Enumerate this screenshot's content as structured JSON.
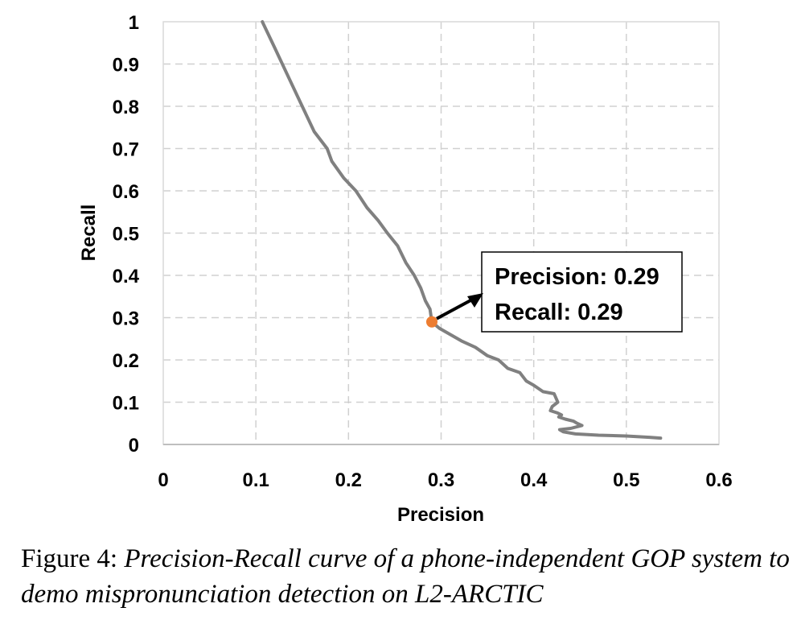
{
  "chart_data": {
    "type": "line",
    "xlabel": "Precision",
    "ylabel": "Recall",
    "xlim": [
      0,
      0.6
    ],
    "ylim": [
      0,
      1
    ],
    "x_ticks": [
      "0",
      "0.1",
      "0.2",
      "0.3",
      "0.4",
      "0.5",
      "0.6"
    ],
    "y_ticks": [
      "0",
      "0.1",
      "0.2",
      "0.3",
      "0.4",
      "0.5",
      "0.6",
      "0.7",
      "0.8",
      "0.9",
      "1"
    ],
    "grid": true,
    "series_color": "#808080",
    "marker_color": "#ED7D31",
    "series": [
      {
        "points": [
          [
            0.107,
            1.0
          ],
          [
            0.12,
            0.94
          ],
          [
            0.135,
            0.87
          ],
          [
            0.15,
            0.8
          ],
          [
            0.163,
            0.74
          ],
          [
            0.177,
            0.7
          ],
          [
            0.182,
            0.67
          ],
          [
            0.195,
            0.63
          ],
          [
            0.208,
            0.6
          ],
          [
            0.22,
            0.56
          ],
          [
            0.232,
            0.53
          ],
          [
            0.242,
            0.5
          ],
          [
            0.253,
            0.47
          ],
          [
            0.262,
            0.43
          ],
          [
            0.271,
            0.4
          ],
          [
            0.278,
            0.37
          ],
          [
            0.283,
            0.34
          ],
          [
            0.288,
            0.32
          ],
          [
            0.29,
            0.29
          ],
          [
            0.298,
            0.275
          ],
          [
            0.31,
            0.26
          ],
          [
            0.322,
            0.245
          ],
          [
            0.337,
            0.23
          ],
          [
            0.35,
            0.21
          ],
          [
            0.362,
            0.2
          ],
          [
            0.372,
            0.18
          ],
          [
            0.385,
            0.17
          ],
          [
            0.392,
            0.15
          ],
          [
            0.4,
            0.14
          ],
          [
            0.41,
            0.125
          ],
          [
            0.422,
            0.12
          ],
          [
            0.426,
            0.1
          ],
          [
            0.42,
            0.09
          ],
          [
            0.418,
            0.08
          ],
          [
            0.425,
            0.075
          ],
          [
            0.43,
            0.07
          ],
          [
            0.427,
            0.065
          ],
          [
            0.434,
            0.06
          ],
          [
            0.443,
            0.055
          ],
          [
            0.447,
            0.05
          ],
          [
            0.452,
            0.045
          ],
          [
            0.44,
            0.038
          ],
          [
            0.428,
            0.035
          ],
          [
            0.432,
            0.03
          ],
          [
            0.445,
            0.025
          ],
          [
            0.47,
            0.022
          ],
          [
            0.5,
            0.02
          ],
          [
            0.525,
            0.017
          ],
          [
            0.537,
            0.015
          ]
        ]
      }
    ],
    "highlight": {
      "x": 0.29,
      "y": 0.29,
      "label_lines": [
        "Precision: 0.29",
        "Recall: 0.29"
      ]
    }
  },
  "caption": {
    "prefix": "Figure 4: ",
    "body": "Precision-Recall curve of a phone-independent GOP system to demo mispronunciation detection on L2-ARCTIC"
  }
}
